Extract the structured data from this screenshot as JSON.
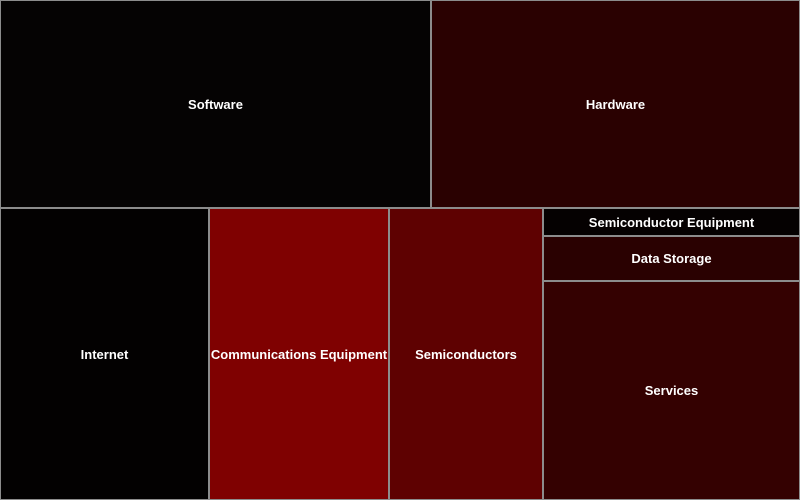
{
  "chart_data": {
    "type": "treemap",
    "nodes": [
      {
        "label": "Software",
        "color": "#050303"
      },
      {
        "label": "Hardware",
        "color": "#2a0101"
      },
      {
        "label": "Internet",
        "color": "#030101"
      },
      {
        "label": "Communications Equipment",
        "color": "#7f0101"
      },
      {
        "label": "Semiconductors",
        "color": "#5e0101"
      },
      {
        "label": "Semiconductor Equipment",
        "color": "#050101"
      },
      {
        "label": "Data Storage",
        "color": "#2a0101"
      },
      {
        "label": "Services",
        "color": "#340101"
      }
    ]
  }
}
